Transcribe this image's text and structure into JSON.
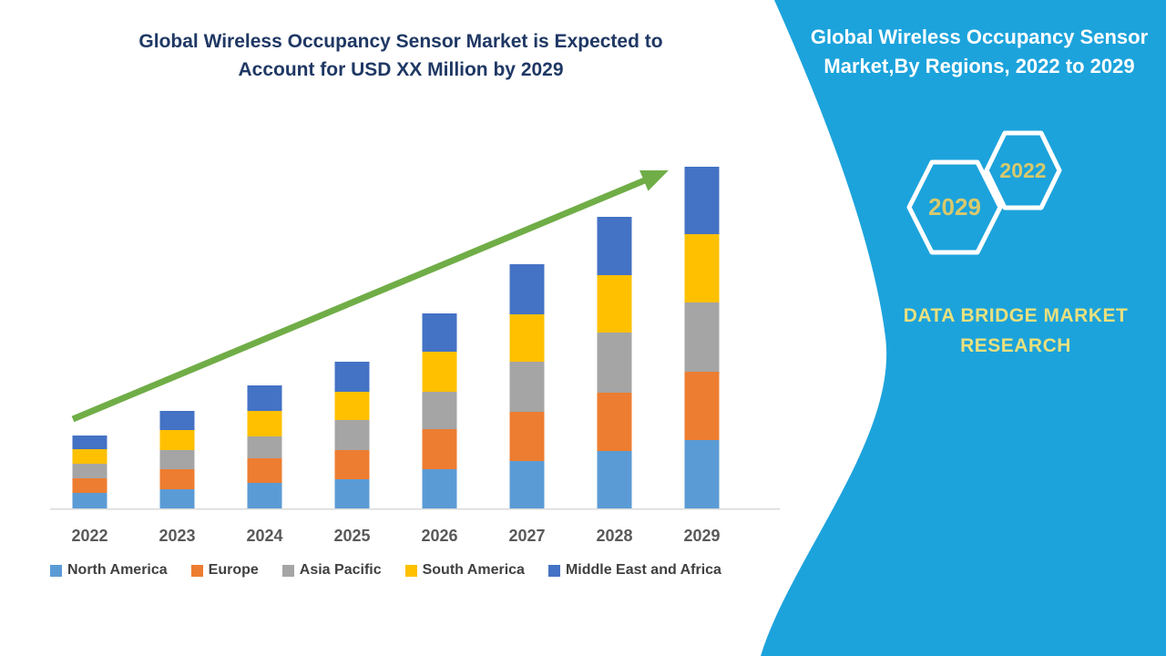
{
  "main_chart": {
    "title_line1": "Global Wireless Occupancy Sensor Market is Expected to",
    "title_line2": "Account for USD XX Million by 2029",
    "title_color": "#1F3864"
  },
  "chart_data": {
    "type": "bar",
    "stacked": true,
    "title": "Global Wireless Occupancy Sensor Market is Expected to Account for USD XX Million by 2029",
    "xlabel": "",
    "ylabel": "",
    "categories": [
      "2022",
      "2023",
      "2024",
      "2025",
      "2026",
      "2027",
      "2028",
      "2029"
    ],
    "series": [
      {
        "name": "North America",
        "color": "#5B9BD5",
        "values": [
          17,
          21,
          28,
          32,
          43,
          52,
          63,
          75
        ]
      },
      {
        "name": "Europe",
        "color": "#ED7D31",
        "values": [
          16,
          22,
          27,
          32,
          44,
          54,
          64,
          75
        ]
      },
      {
        "name": "Asia Pacific",
        "color": "#A5A5A5",
        "values": [
          16,
          21,
          24,
          33,
          41,
          55,
          66,
          76
        ]
      },
      {
        "name": "South America",
        "color": "#FFC000",
        "values": [
          16,
          22,
          28,
          31,
          44,
          52,
          63,
          75
        ]
      },
      {
        "name": "Middle East and Africa",
        "color": "#4472C4",
        "values": [
          15,
          21,
          28,
          33,
          42,
          55,
          64,
          74
        ]
      }
    ],
    "totals": [
      80,
      107,
      135,
      161,
      214,
      268,
      320,
      375
    ],
    "value_note": "y-axis unlabeled in source (values masked as USD XX Million); series values are relative estimates",
    "grid": false,
    "y_axis_visible": false,
    "legend_position": "bottom",
    "trend_arrow_color": "#70AD47",
    "axis_label_color": "#595959",
    "baseline_color": "#D9D9D9",
    "legend_text_color": "#404040"
  },
  "sidebar": {
    "background_color": "#1CA3DC",
    "title_line1": "Global Wireless Occupancy Sensor",
    "title_line2": "Market,By Regions, 2022 to 2029",
    "hexagon_back_label": "2029",
    "hexagon_front_label": "2022",
    "hexagon_border_color": "#ffffff",
    "hexagon_text_color": "#D8C96C",
    "brand_line1": "DATA BRIDGE MARKET",
    "brand_line2": "RESEARCH",
    "brand_text_color": "#E9E07E"
  }
}
